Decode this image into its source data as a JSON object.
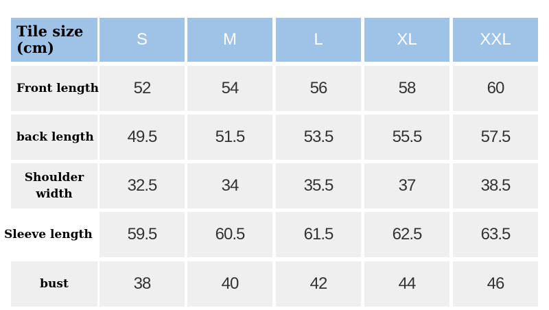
{
  "table": {
    "corner_label": "Tile size\n(cm)",
    "sizes": [
      "S",
      "M",
      "L",
      "XL",
      "XXL"
    ],
    "rows": [
      {
        "label": "Front length",
        "values": [
          "52",
          "54",
          "56",
          "58",
          "60"
        ]
      },
      {
        "label": "back length",
        "values": [
          "49.5",
          "51.5",
          "53.5",
          "55.5",
          "57.5"
        ]
      },
      {
        "label": "Shoulder\nwidth",
        "values": [
          "32.5",
          "34",
          "35.5",
          "37",
          "38.5"
        ]
      },
      {
        "label": "Sleeve length",
        "values": [
          "59.5",
          "60.5",
          "61.5",
          "62.5",
          "63.5"
        ]
      },
      {
        "label": "bust",
        "values": [
          "38",
          "40",
          "42",
          "44",
          "46"
        ]
      }
    ]
  },
  "colors": {
    "header_bg": "#9ec3e6",
    "cell_bg": "#efefef",
    "header_text": "#ffffff",
    "value_text": "#333333"
  }
}
